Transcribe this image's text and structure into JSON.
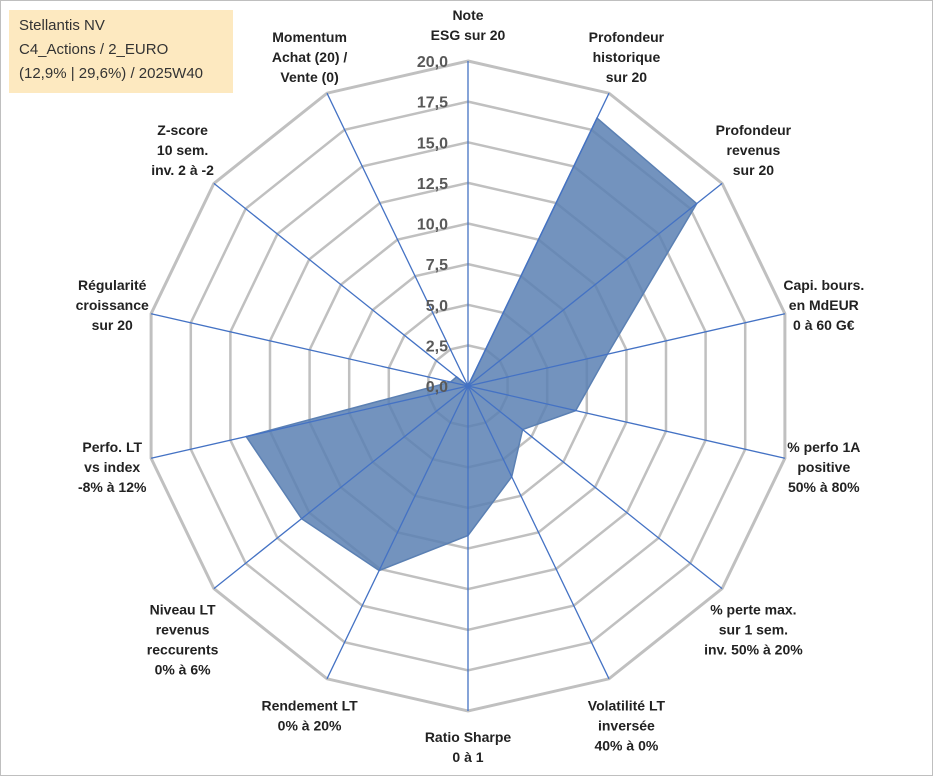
{
  "info_box": {
    "line1": "Stellantis NV",
    "line2": "C4_Actions / 2_EURO",
    "line3": "(12,9% | 29,6%) / 2025W40"
  },
  "colors": {
    "grid": "#c0c0c0",
    "spoke": "#4472c4",
    "fill": "#5b80b3",
    "info_bg": "#fde9c0"
  },
  "chart_data": {
    "type": "radar",
    "title": "",
    "rmax": 20,
    "ticks": [
      "0,0",
      "2,5",
      "5,0",
      "7,5",
      "10,0",
      "12,5",
      "15,0",
      "17,5",
      "20,0"
    ],
    "categories": [
      [
        "Note",
        "ESG sur 20"
      ],
      [
        "Profondeur",
        "historique",
        "sur 20"
      ],
      [
        "Profondeur",
        "revenus",
        "sur 20"
      ],
      [
        "Capi. bours.",
        "en MdEUR",
        "0 à 60 G€"
      ],
      [
        "% perfo 1A",
        "positive",
        "50% à 80%"
      ],
      [
        "% perte max.",
        "sur 1 sem.",
        "inv. 50% à 20%"
      ],
      [
        "Volatilité LT",
        "inversée",
        "40% à 0%"
      ],
      [
        "Ratio Sharpe",
        "0 à 1"
      ],
      [
        "Rendement LT",
        "0% à 20%"
      ],
      [
        "Niveau LT",
        "revenus",
        "reccurents",
        "0% à 6%"
      ],
      [
        "Perfo. LT",
        "vs index",
        "-8% à 12%"
      ],
      [
        "Régularité",
        "croissance",
        "sur 20"
      ],
      [
        "Z-score",
        "10 sem.",
        "inv. 2 à -2"
      ],
      [
        "Momentum",
        "Achat (20) /",
        "Vente (0)"
      ]
    ],
    "values": [
      0,
      18.3,
      18.0,
      8.8,
      6.8,
      4.3,
      6.2,
      9.2,
      12.6,
      13.1,
      14.0,
      1.1,
      0.9,
      0
    ]
  }
}
